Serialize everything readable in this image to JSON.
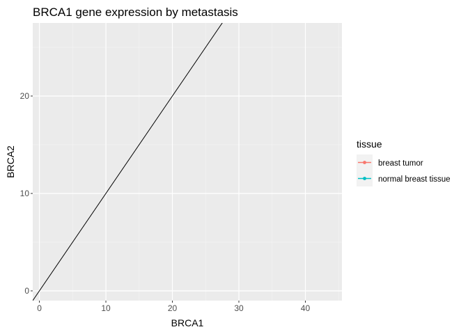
{
  "chart_data": {
    "type": "line",
    "title": "BRCA1 gene expression by metastasis",
    "xlabel": "BRCA1",
    "ylabel": "BRCA2",
    "xlim": [
      -1,
      45.5
    ],
    "ylim": [
      -1,
      27.5
    ],
    "x_ticks": [
      0,
      10,
      20,
      30,
      40
    ],
    "y_ticks": [
      0,
      10,
      20
    ],
    "x_tick_labels": [
      "0",
      "10",
      "20",
      "30",
      "40"
    ],
    "y_tick_labels": [
      "0",
      "10",
      "20"
    ],
    "grid": true,
    "reference_line": {
      "slope": 1,
      "intercept": 0,
      "color": "#000000"
    },
    "legend": {
      "title": "tissue",
      "position": "right",
      "entries": [
        {
          "label": "breast tumor",
          "color": "#F8766D"
        },
        {
          "label": "normal breast tissue",
          "color": "#00BFC4"
        }
      ]
    },
    "series": [
      {
        "name": "breast tumor",
        "color": "#F8766D",
        "points": []
      },
      {
        "name": "normal breast tissue",
        "color": "#00BFC4",
        "points": []
      }
    ]
  }
}
